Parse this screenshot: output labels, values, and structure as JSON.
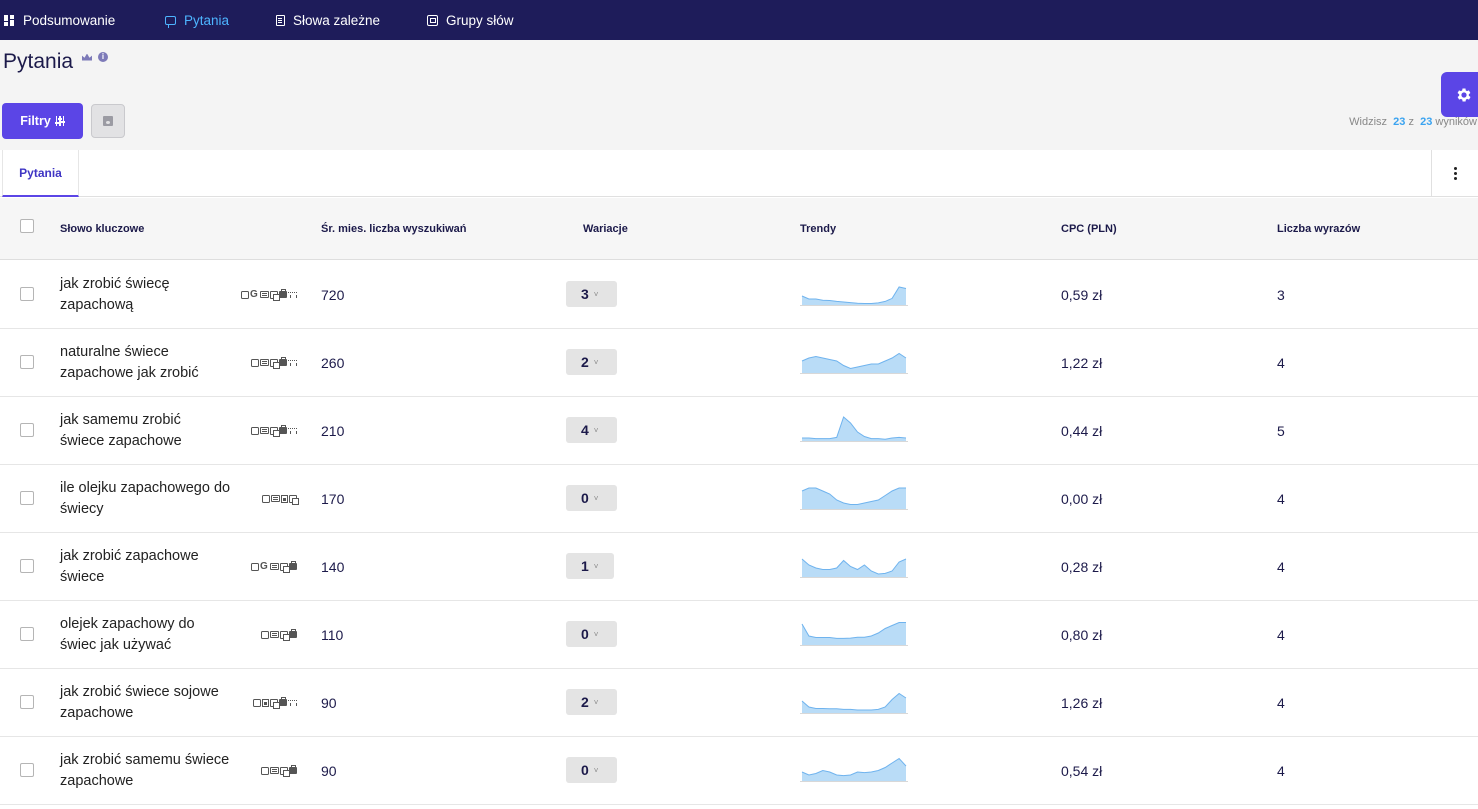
{
  "nav": [
    {
      "label": "Podsumowanie",
      "icon": "dashboard-icon",
      "active": false
    },
    {
      "label": "Pytania",
      "icon": "question-icon",
      "active": true
    },
    {
      "label": "Słowa zależne",
      "icon": "document-icon",
      "active": false
    },
    {
      "label": "Grupy słów",
      "icon": "group-icon",
      "active": false
    }
  ],
  "page": {
    "title": "Pytania"
  },
  "toolbar": {
    "filters_label": "Filtry",
    "save_icon": "floppy-icon",
    "settings_icon": "gear-icon"
  },
  "results": {
    "prefix": "Widzisz",
    "shown": "23",
    "sep": "z",
    "total": "23",
    "suffix": "wyników"
  },
  "tabs": [
    {
      "label": "Pytania"
    }
  ],
  "table": {
    "headers": {
      "keyword": "Słowo kluczowe",
      "volume": "Śr. mies. liczba wyszukiwań",
      "variations": "Wariacje",
      "trends": "Trendy",
      "cpc": "CPC (PLN)",
      "words": "Liczba wyrazów"
    },
    "rows": [
      {
        "line1": "jak zrobić świecę",
        "line2": "zapachową",
        "icons": [
          "q",
          "g",
          "t",
          "c",
          "b",
          "s"
        ],
        "volume": "720",
        "variations": "3",
        "cpc": "0,59 zł",
        "words": "3",
        "trend": [
          3,
          2,
          2,
          1.6,
          1.5,
          1.2,
          1,
          0.8,
          0.6,
          0.5,
          0.5,
          0.7,
          1.2,
          2.2,
          6,
          5.5
        ]
      },
      {
        "line1": "naturalne świece",
        "line2": "zapachowe jak zrobić",
        "icons": [
          "q",
          "t",
          "c",
          "b",
          "s"
        ],
        "volume": "260",
        "variations": "2",
        "cpc": "1,22 zł",
        "words": "4",
        "trend": [
          4,
          5,
          5.5,
          5,
          4.5,
          4,
          2.5,
          1.5,
          2,
          2.5,
          3,
          3,
          4,
          5,
          6.5,
          5
        ]
      },
      {
        "line1": "jak samemu zrobić",
        "line2": "świece zapachowe",
        "icons": [
          "q",
          "t",
          "c",
          "b",
          "s"
        ],
        "volume": "210",
        "variations": "4",
        "cpc": "0,44 zł",
        "words": "5",
        "trend": [
          1,
          1,
          0.8,
          0.8,
          0.8,
          1.2,
          8,
          6,
          3,
          1.5,
          0.8,
          0.8,
          0.6,
          1,
          1.2,
          1
        ]
      },
      {
        "line1": "ile olejku zapachowego do",
        "line2": "świecy",
        "icons": [
          "q",
          "t",
          "f",
          "c"
        ],
        "volume": "170",
        "variations": "0",
        "cpc": "0,00 zł",
        "words": "4",
        "trend": [
          6,
          7,
          7,
          6,
          5,
          3,
          2,
          1.5,
          1.5,
          2,
          2.5,
          3,
          4.5,
          6,
          7,
          7
        ]
      },
      {
        "line1": "jak zrobić zapachowe",
        "line2": "świece",
        "icons": [
          "q",
          "g",
          "t",
          "c",
          "b"
        ],
        "volume": "140",
        "variations": "1",
        "cpc": "0,28 zł",
        "words": "4",
        "trend": [
          6,
          4,
          3,
          2.5,
          2.5,
          3,
          5.5,
          3.5,
          2.5,
          4,
          2,
          1,
          1.2,
          2,
          5,
          6
        ]
      },
      {
        "line1": "olejek zapachowy do",
        "line2": "świec jak używać",
        "icons": [
          "q",
          "t",
          "c",
          "b"
        ],
        "volume": "110",
        "variations": "0",
        "cpc": "0,80 zł",
        "words": "4",
        "trend": [
          7,
          3,
          2.5,
          2.5,
          2.5,
          2.2,
          2.2,
          2.3,
          2.6,
          2.6,
          3,
          4,
          5.5,
          6.5,
          7.5,
          7.5
        ]
      },
      {
        "line1": "jak zrobić świece sojowe",
        "line2": "zapachowe",
        "icons": [
          "q",
          "f",
          "c",
          "b",
          "s"
        ],
        "volume": "90",
        "variations": "2",
        "cpc": "1,26 zł",
        "words": "4",
        "trend": [
          4,
          2,
          1.5,
          1.5,
          1.4,
          1.4,
          1.2,
          1.2,
          1,
          1,
          1,
          1.2,
          2,
          4.5,
          6.5,
          5
        ]
      },
      {
        "line1": "jak zrobić samemu świece",
        "line2": "zapachowe",
        "icons": [
          "q",
          "t",
          "c",
          "b"
        ],
        "volume": "90",
        "variations": "0",
        "cpc": "0,54 zł",
        "words": "4",
        "trend": [
          3,
          2,
          2.5,
          3.5,
          3,
          2,
          1.8,
          2,
          3,
          2.8,
          3,
          3.5,
          4.5,
          6,
          7.5,
          5
        ]
      }
    ]
  },
  "colors": {
    "nav_bg": "#1e1c5a",
    "accent": "#5b45e6",
    "nav_active": "#4db4ff",
    "trend_fill": "#b9dcf7",
    "trend_stroke": "#6fb3ee"
  }
}
